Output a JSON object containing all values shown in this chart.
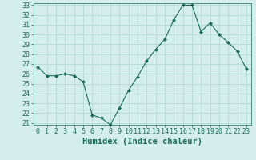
{
  "x": [
    0,
    1,
    2,
    3,
    4,
    5,
    6,
    7,
    8,
    9,
    10,
    11,
    12,
    13,
    14,
    15,
    16,
    17,
    18,
    19,
    20,
    21,
    22,
    23
  ],
  "y": [
    26.7,
    25.8,
    25.8,
    26.0,
    25.8,
    25.2,
    21.8,
    21.5,
    20.8,
    22.5,
    24.3,
    25.7,
    27.3,
    28.5,
    29.5,
    31.5,
    33.0,
    33.0,
    30.3,
    31.2,
    30.0,
    29.2,
    28.3,
    26.5
  ],
  "line_color": "#1a6b5a",
  "marker": "D",
  "marker_size": 2.0,
  "bg_color": "#d4eeee",
  "grid_color": "#b0d4d4",
  "xlabel": "Humidex (Indice chaleur)",
  "ylim": [
    21,
    33
  ],
  "xlim": [
    -0.5,
    23.5
  ],
  "yticks": [
    21,
    22,
    23,
    24,
    25,
    26,
    27,
    28,
    29,
    30,
    31,
    32,
    33
  ],
  "xticks": [
    0,
    1,
    2,
    3,
    4,
    5,
    6,
    7,
    8,
    9,
    10,
    11,
    12,
    13,
    14,
    15,
    16,
    17,
    18,
    19,
    20,
    21,
    22,
    23
  ],
  "xlabel_fontsize": 7.5,
  "tick_fontsize": 6.0
}
